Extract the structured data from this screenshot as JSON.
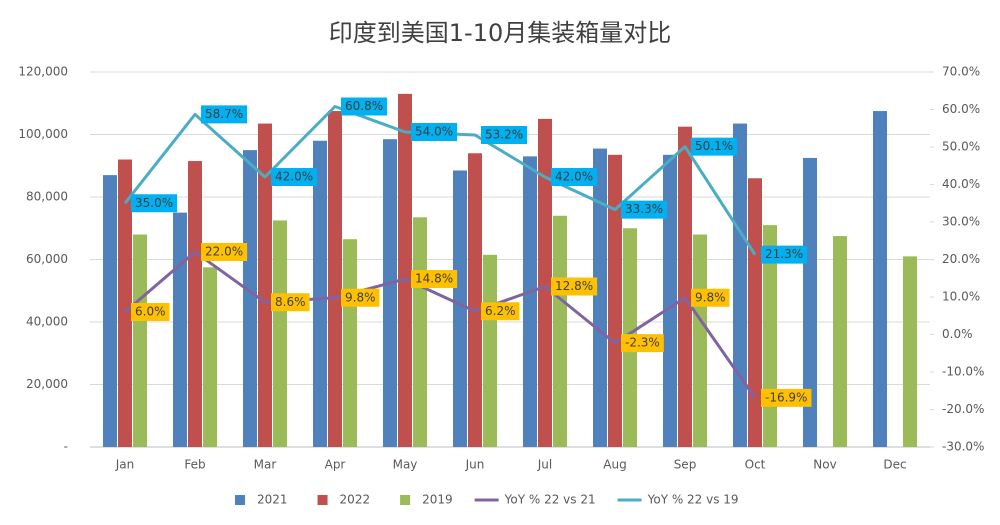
{
  "chart_data": {
    "type": "bar",
    "title": "印度到美国1-10月集装箱量对比",
    "categories": [
      "Jan",
      "Feb",
      "Mar",
      "Apr",
      "May",
      "Jun",
      "Jul",
      "Aug",
      "Sep",
      "Oct",
      "Nov",
      "Dec"
    ],
    "series": [
      {
        "name": "2021",
        "type": "bar",
        "color": "#4f81bd",
        "values": [
          87000,
          75000,
          95000,
          98000,
          98500,
          88500,
          93000,
          95500,
          93500,
          103500,
          92500,
          107500
        ]
      },
      {
        "name": "2022",
        "type": "bar",
        "color": "#c0504d",
        "values": [
          92000,
          91500,
          103500,
          107500,
          113000,
          94000,
          105000,
          93500,
          102500,
          86000,
          null,
          null
        ]
      },
      {
        "name": "2019",
        "type": "bar",
        "color": "#9bbb59",
        "values": [
          68000,
          57500,
          72500,
          66500,
          73500,
          61500,
          74000,
          70000,
          68000,
          71000,
          67500,
          61000
        ]
      },
      {
        "name": "YoY % 22 vs 21",
        "type": "line",
        "axis": "y2",
        "color": "#8064a2",
        "label_color": "#ffc000",
        "values": [
          6.0,
          22.0,
          8.6,
          9.8,
          14.8,
          6.2,
          12.8,
          -2.3,
          9.8,
          -16.9,
          null,
          null
        ],
        "value_labels": [
          "6.0%",
          "22.0%",
          "8.6%",
          "9.8%",
          "14.8%",
          "6.2%",
          "12.8%",
          "-2.3%",
          "9.8%",
          "-16.9%",
          null,
          null
        ]
      },
      {
        "name": "YoY % 22 vs 19",
        "type": "line",
        "axis": "y2",
        "color": "#4bacc6",
        "label_color": "#00b0f0",
        "values": [
          35.0,
          58.7,
          42.0,
          60.8,
          54.0,
          53.2,
          42.0,
          33.3,
          50.1,
          21.3,
          null,
          null
        ],
        "value_labels": [
          "35.0%",
          "58.7%",
          "42.0%",
          "60.8%",
          "54.0%",
          "53.2%",
          "42.0%",
          "33.3%",
          "50.1%",
          "21.3%",
          null,
          null
        ]
      }
    ],
    "ylim": [
      0,
      120000
    ],
    "yticks": [
      {
        "value": 0,
        "label": "-"
      },
      {
        "value": 20000,
        "label": "20,000"
      },
      {
        "value": 40000,
        "label": "40,000"
      },
      {
        "value": 60000,
        "label": "60,000"
      },
      {
        "value": 80000,
        "label": "80,000"
      },
      {
        "value": 100000,
        "label": "100,000"
      },
      {
        "value": 120000,
        "label": "120,000"
      }
    ],
    "y2lim": [
      -30,
      70
    ],
    "y2ticks": [
      {
        "value": -30,
        "label": "-30.0%"
      },
      {
        "value": -20,
        "label": "-20.0%"
      },
      {
        "value": -10,
        "label": "-10.0%"
      },
      {
        "value": 0,
        "label": "0.0%"
      },
      {
        "value": 10,
        "label": "10.0%"
      },
      {
        "value": 20,
        "label": "20.0%"
      },
      {
        "value": 30,
        "label": "30.0%"
      },
      {
        "value": 40,
        "label": "40.0%"
      },
      {
        "value": 50,
        "label": "50.0%"
      },
      {
        "value": 60,
        "label": "60.0%"
      },
      {
        "value": 70,
        "label": "70.0%"
      }
    ],
    "grid": true,
    "legend": "bottom"
  }
}
